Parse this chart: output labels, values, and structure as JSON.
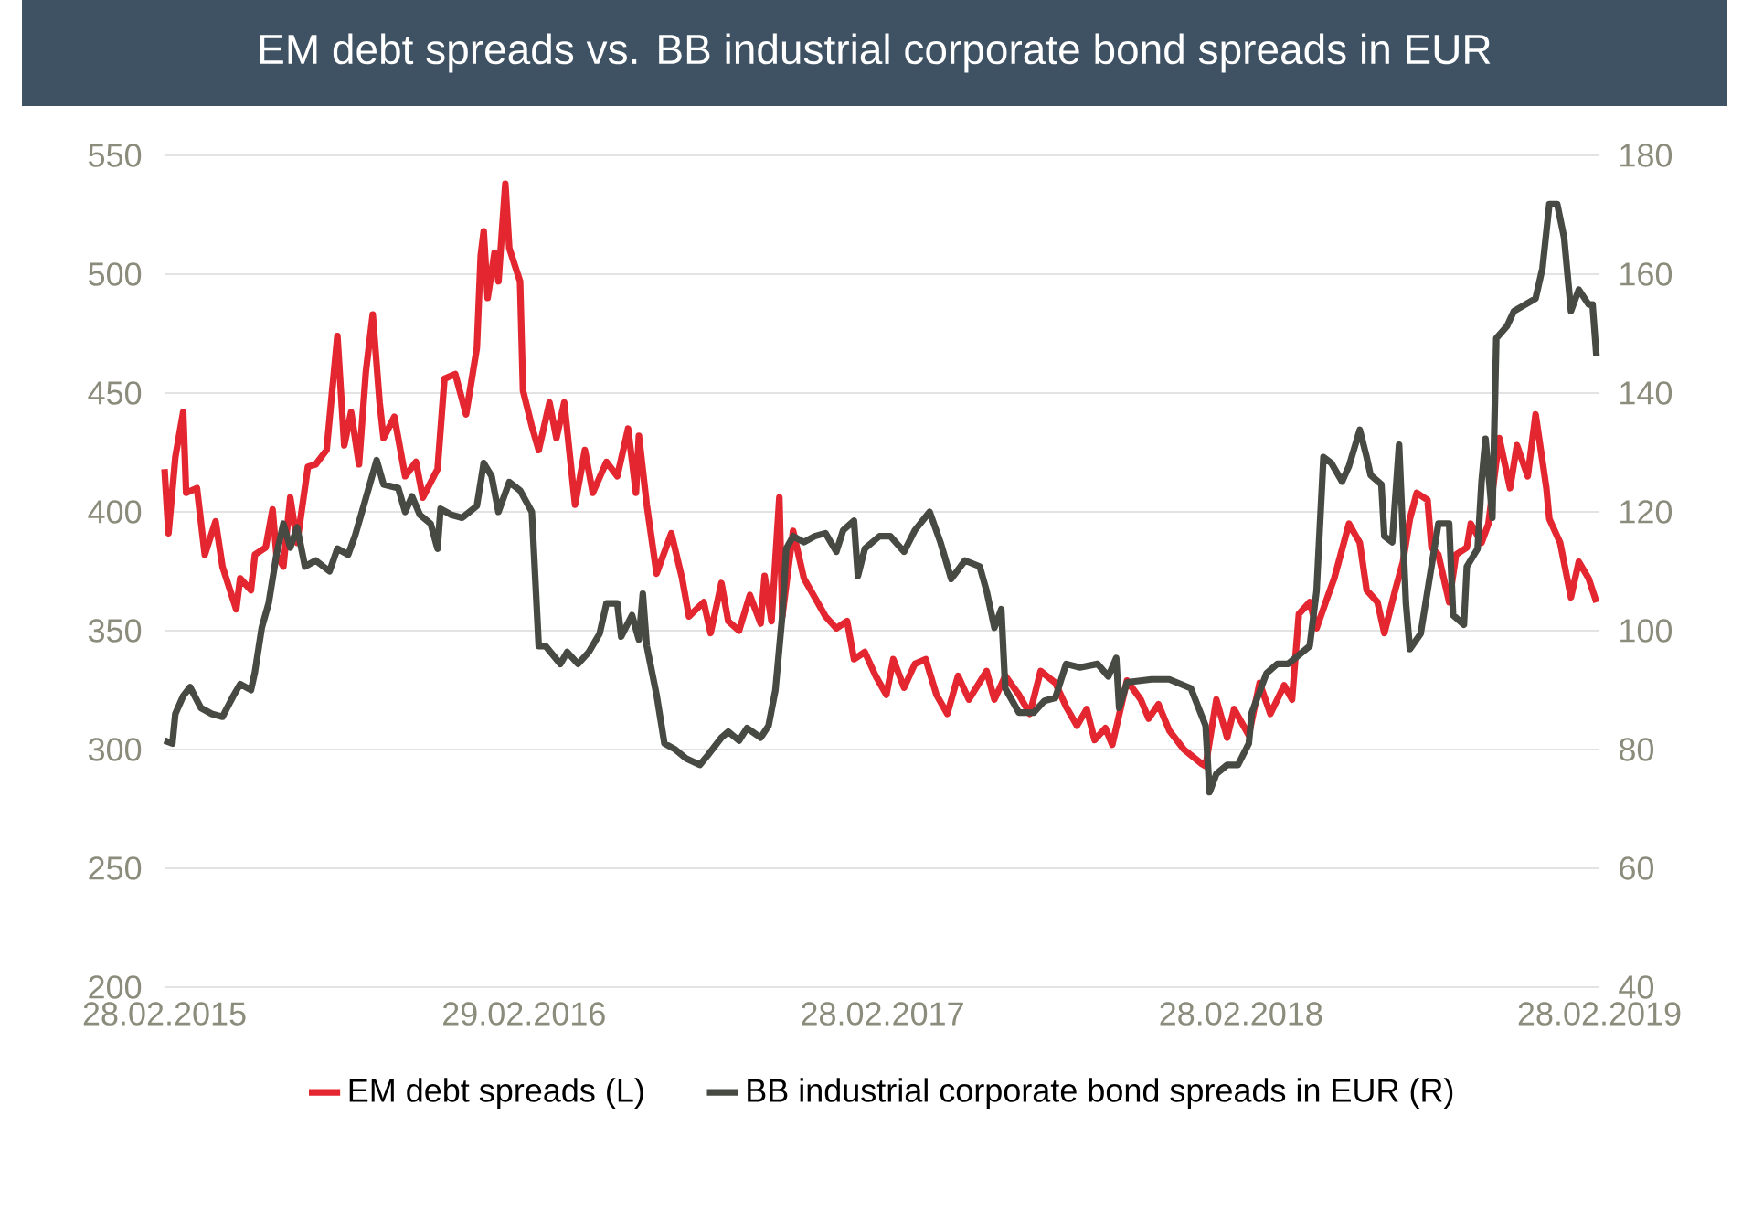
{
  "chart_data": {
    "type": "line",
    "title": "EM debt spreads vs. BB industrial corporate bond spreads in EUR",
    "xlim": [
      "2015-02-28",
      "2019-02-28"
    ],
    "xticks": [
      {
        "value": "2015-02-28",
        "label": "28.02.2015"
      },
      {
        "value": "2016-02-29",
        "label": "29.02.2016"
      },
      {
        "value": "2017-02-28",
        "label": "28.02.2017"
      },
      {
        "value": "2018-02-28",
        "label": "28.02.2018"
      },
      {
        "value": "2019-02-28",
        "label": "28.02.2019"
      }
    ],
    "ylim": [
      200,
      550
    ],
    "yticks": [
      200,
      250,
      300,
      350,
      400,
      450,
      500,
      550
    ],
    "y2lim": [
      40,
      180
    ],
    "y2ticks": [
      40,
      60,
      80,
      100,
      120,
      140,
      160,
      180
    ],
    "grid": "y",
    "legend": "bottom",
    "line_style": "solid",
    "series": [
      {
        "name": "EM debt spreads (L)",
        "color": "#e3262f",
        "axis": "y",
        "x": [
          "2015-02-28",
          "2015-03-04",
          "2015-03-11",
          "2015-03-19",
          "2015-03-22",
          "2015-04-02",
          "2015-04-10",
          "2015-04-21",
          "2015-04-28",
          "2015-05-12",
          "2015-05-16",
          "2015-05-27",
          "2015-05-31",
          "2015-06-11",
          "2015-06-18",
          "2015-06-22",
          "2015-06-29",
          "2015-07-06",
          "2015-07-13",
          "2015-07-24",
          "2015-08-01",
          "2015-08-12",
          "2015-08-23",
          "2015-08-30",
          "2015-09-06",
          "2015-09-14",
          "2015-09-21",
          "2015-09-28",
          "2015-10-05",
          "2015-10-09",
          "2015-10-20",
          "2015-10-31",
          "2015-11-11",
          "2015-11-18",
          "2015-12-03",
          "2015-12-10",
          "2015-12-21",
          "2016-01-01",
          "2016-01-12",
          "2016-01-16",
          "2016-01-19",
          "2016-01-23",
          "2016-01-30",
          "2016-02-03",
          "2016-02-10",
          "2016-02-14",
          "2016-02-25",
          "2016-02-28",
          "2016-03-08",
          "2016-03-15",
          "2016-03-26",
          "2016-04-02",
          "2016-04-10",
          "2016-04-21",
          "2016-05-01",
          "2016-05-09",
          "2016-05-23",
          "2016-06-03",
          "2016-06-14",
          "2016-06-22",
          "2016-06-25",
          "2016-07-03",
          "2016-07-13",
          "2016-07-28",
          "2016-08-08",
          "2016-08-15",
          "2016-08-30",
          "2016-09-06",
          "2016-09-17",
          "2016-09-24",
          "2016-10-05",
          "2016-10-16",
          "2016-10-27",
          "2016-10-31",
          "2016-11-07",
          "2016-11-15",
          "2016-11-18",
          "2016-11-29",
          "2016-12-10",
          "2016-12-21",
          "2017-01-01",
          "2017-01-12",
          "2017-01-23",
          "2017-01-30",
          "2017-02-10",
          "2017-02-21",
          "2017-03-04",
          "2017-03-11",
          "2017-03-22",
          "2017-04-02",
          "2017-04-13",
          "2017-04-24",
          "2017-05-05",
          "2017-05-16",
          "2017-05-27",
          "2017-06-14",
          "2017-06-22",
          "2017-07-03",
          "2017-07-17",
          "2017-07-28",
          "2017-08-08",
          "2017-08-23",
          "2017-09-03",
          "2017-09-14",
          "2017-09-24",
          "2017-10-02",
          "2017-10-13",
          "2017-10-20",
          "2017-11-04",
          "2017-11-18",
          "2017-11-26",
          "2017-12-06",
          "2017-12-17",
          "2018-01-01",
          "2018-01-19",
          "2018-01-23",
          "2018-02-03",
          "2018-02-14",
          "2018-02-21",
          "2018-03-08",
          "2018-03-19",
          "2018-03-30",
          "2018-04-13",
          "2018-04-21",
          "2018-04-28",
          "2018-05-09",
          "2018-05-16",
          "2018-05-27",
          "2018-06-03",
          "2018-06-18",
          "2018-06-29",
          "2018-07-06",
          "2018-07-17",
          "2018-07-24",
          "2018-08-04",
          "2018-08-12",
          "2018-08-19",
          "2018-08-26",
          "2018-09-06",
          "2018-09-10",
          "2018-09-17",
          "2018-09-28",
          "2018-10-05",
          "2018-10-16",
          "2018-10-20",
          "2018-10-31",
          "2018-11-07",
          "2018-11-18",
          "2018-11-29",
          "2018-12-06",
          "2018-12-17",
          "2018-12-25",
          "2019-01-05",
          "2019-01-08",
          "2019-01-19",
          "2019-01-30",
          "2019-02-07",
          "2019-02-17",
          "2019-02-25"
        ],
        "values": [
          418,
          391,
          423,
          442,
          408,
          410,
          382,
          396,
          377,
          359,
          372,
          367,
          382,
          385,
          401,
          382,
          377,
          406,
          387,
          419,
          420,
          426,
          474,
          428,
          442,
          420,
          459,
          483,
          446,
          431,
          440,
          415,
          421,
          406,
          418,
          456,
          458,
          441,
          469,
          508,
          518,
          490,
          509,
          497,
          538,
          511,
          497,
          451,
          436,
          426,
          446,
          431,
          446,
          403,
          426,
          408,
          421,
          415,
          435,
          408,
          432,
          403,
          374,
          391,
          372,
          356,
          362,
          349,
          370,
          354,
          350,
          365,
          353,
          373,
          354,
          406,
          356,
          392,
          372,
          364,
          356,
          351,
          354,
          338,
          341,
          331,
          323,
          338,
          326,
          336,
          338,
          323,
          315,
          331,
          321,
          333,
          321,
          331,
          323,
          315,
          333,
          328,
          318,
          310,
          317,
          304,
          309,
          302,
          329,
          321,
          313,
          319,
          308,
          300,
          294,
          293,
          321,
          305,
          317,
          306,
          328,
          315,
          327,
          321,
          357,
          362,
          351,
          364,
          372,
          395,
          387,
          367,
          362,
          349,
          367,
          379,
          397,
          408,
          405,
          385,
          382,
          362,
          382,
          385,
          395,
          387,
          395,
          431,
          410,
          428,
          415,
          441,
          410,
          397,
          387,
          364,
          379,
          372,
          362
        ]
      },
      {
        "name": "BB industrial corporate bond spreads in EUR (R)",
        "color": "#474a42",
        "axis": "y2",
        "x": [
          "2015-02-28",
          "2015-03-08",
          "2015-03-11",
          "2015-03-19",
          "2015-03-26",
          "2015-04-06",
          "2015-04-17",
          "2015-04-28",
          "2015-05-09",
          "2015-05-16",
          "2015-05-27",
          "2015-05-31",
          "2015-06-07",
          "2015-06-14",
          "2015-06-22",
          "2015-06-29",
          "2015-07-06",
          "2015-07-13",
          "2015-07-21",
          "2015-08-01",
          "2015-08-15",
          "2015-08-23",
          "2015-09-03",
          "2015-09-10",
          "2015-09-17",
          "2015-10-02",
          "2015-10-09",
          "2015-10-24",
          "2015-10-31",
          "2015-11-07",
          "2015-11-15",
          "2015-11-26",
          "2015-12-03",
          "2015-12-06",
          "2015-12-17",
          "2015-12-28",
          "2016-01-12",
          "2016-01-19",
          "2016-01-27",
          "2016-02-03",
          "2016-02-14",
          "2016-02-25",
          "2016-03-08",
          "2016-03-15",
          "2016-03-22",
          "2016-04-06",
          "2016-04-13",
          "2016-04-24",
          "2016-05-05",
          "2016-05-16",
          "2016-05-23",
          "2016-06-03",
          "2016-06-07",
          "2016-06-18",
          "2016-06-25",
          "2016-06-29",
          "2016-07-03",
          "2016-07-13",
          "2016-07-21",
          "2016-08-01",
          "2016-08-12",
          "2016-08-26",
          "2016-09-03",
          "2016-09-17",
          "2016-09-24",
          "2016-10-05",
          "2016-10-13",
          "2016-10-27",
          "2016-11-04",
          "2016-11-11",
          "2016-11-18",
          "2016-11-22",
          "2016-11-29",
          "2016-12-10",
          "2016-12-21",
          "2017-01-01",
          "2017-01-12",
          "2017-01-19",
          "2017-01-30",
          "2017-02-03",
          "2017-02-10",
          "2017-02-25",
          "2017-03-08",
          "2017-03-22",
          "2017-04-02",
          "2017-04-17",
          "2017-04-28",
          "2017-05-09",
          "2017-05-23",
          "2017-06-07",
          "2017-06-14",
          "2017-06-22",
          "2017-06-29",
          "2017-07-03",
          "2017-07-17",
          "2017-08-01",
          "2017-08-12",
          "2017-08-23",
          "2017-09-03",
          "2017-09-17",
          "2017-10-05",
          "2017-10-16",
          "2017-10-24",
          "2017-10-27",
          "2017-11-04",
          "2017-11-29",
          "2017-12-17",
          "2018-01-08",
          "2018-01-23",
          "2018-01-27",
          "2018-02-03",
          "2018-02-14",
          "2018-02-25",
          "2018-03-08",
          "2018-03-11",
          "2018-03-26",
          "2018-04-06",
          "2018-04-17",
          "2018-04-28",
          "2018-05-09",
          "2018-05-16",
          "2018-05-23",
          "2018-05-31",
          "2018-06-11",
          "2018-06-18",
          "2018-06-29",
          "2018-07-06",
          "2018-07-10",
          "2018-07-21",
          "2018-07-24",
          "2018-08-01",
          "2018-08-08",
          "2018-08-15",
          "2018-08-19",
          "2018-08-30",
          "2018-09-06",
          "2018-09-17",
          "2018-09-28",
          "2018-10-02",
          "2018-10-13",
          "2018-10-16",
          "2018-10-27",
          "2018-10-31",
          "2018-11-04",
          "2018-11-11",
          "2018-11-15",
          "2018-11-26",
          "2018-12-03",
          "2018-12-25",
          "2019-01-01",
          "2019-01-08",
          "2019-01-16",
          "2019-01-23",
          "2019-01-30",
          "2019-02-07",
          "2019-02-17",
          "2019-02-21",
          "2019-02-25"
        ],
        "values": [
          81.5,
          81,
          86,
          89,
          90.5,
          87,
          86,
          85.5,
          89,
          91,
          90,
          93,
          100.5,
          104.6,
          112.8,
          118,
          114,
          117.4,
          110.8,
          111.8,
          110,
          113.8,
          112.8,
          116,
          120,
          128.7,
          124.6,
          124,
          120,
          122.6,
          119.5,
          118,
          113.8,
          120.5,
          119.5,
          119,
          121,
          128.2,
          126,
          120,
          125,
          123.6,
          120,
          97.4,
          97.4,
          94.4,
          96.4,
          94.4,
          96.4,
          99.5,
          104.6,
          104.6,
          99,
          102.6,
          98.5,
          106.2,
          97.4,
          89.2,
          81,
          80,
          78.5,
          77.4,
          79,
          82,
          83,
          81.5,
          83.6,
          82,
          84,
          90,
          102.6,
          113.8,
          115.9,
          114.9,
          115.9,
          116.4,
          113.3,
          116.9,
          118.5,
          109.2,
          113.8,
          115.9,
          115.9,
          113.3,
          116.9,
          120,
          114.9,
          108.7,
          111.8,
          110.8,
          106.7,
          100.5,
          103.6,
          90.3,
          86.2,
          86.2,
          88.2,
          88.7,
          94.4,
          93.8,
          94.4,
          92.3,
          95.4,
          87,
          91.3,
          91.8,
          91.8,
          90.3,
          84,
          72.8,
          75.9,
          77.4,
          77.4,
          81,
          86.2,
          92.8,
          94.4,
          94.4,
          95.9,
          97.4,
          106.7,
          129.2,
          128.2,
          125.1,
          127.7,
          133.8,
          129.2,
          126.2,
          124.6,
          115.9,
          114.9,
          131.3,
          104.6,
          96.9,
          99.5,
          106.7,
          118,
          118,
          102.6,
          101,
          110.8,
          113.8,
          125.1,
          132.3,
          119,
          149.2,
          151.3,
          153.8,
          155.9,
          161,
          171.8,
          171.8,
          166.2,
          153.8,
          157.4,
          154.9,
          154.9,
          146.2
        ]
      }
    ]
  }
}
